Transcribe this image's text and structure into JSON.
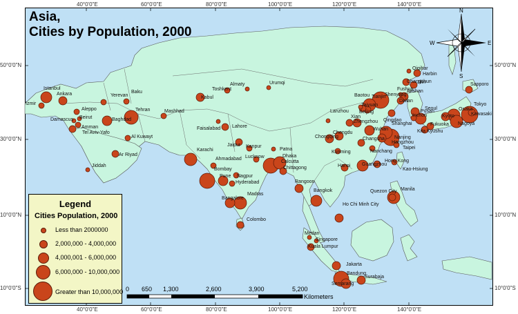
{
  "title": {
    "line1": "Asia,",
    "line2": "Cities by Population, 2000"
  },
  "graticule": {
    "top": [
      "40°0'0\"E",
      "60°0'0\"E",
      "80°0'0\"E",
      "100°0'0\"E",
      "120°0'0\"E",
      "140°0'0\"E"
    ],
    "bottom": [
      "40°0'0\"E",
      "60°0'0\"E",
      "80°0'0\"E",
      "100°0'0\"E",
      "120°0'0\"E",
      "140°0'0\"E"
    ],
    "left": [
      "50°0'0\"N",
      "30°0'0\"N",
      "10°0'0\"N",
      "10°0'0\"S"
    ],
    "right": [
      "50°0'0\"N",
      "30°0'0\"N",
      "10°0'0\"N",
      "10°0'0\"S"
    ]
  },
  "compass": {
    "n": "N",
    "s": "S",
    "e": "E",
    "w": "W"
  },
  "legend": {
    "title": "Legend",
    "subtitle": "Cities Population, 2000",
    "items": [
      {
        "label": "Less than 2000000"
      },
      {
        "label": "2,000,000 - 4,000,000"
      },
      {
        "label": "4,000,001 - 6,000,000"
      },
      {
        "label": "6,000,000 - 10,000,000"
      },
      {
        "label": "Greater than 10,000,000"
      }
    ]
  },
  "scale_bar": {
    "ticks": [
      "0",
      "650",
      "1,300",
      "2,600",
      "3,900",
      "5,200"
    ],
    "unit": "Kilometers"
  },
  "colors": {
    "land": "#c8f5df",
    "sea": "#bfe0f5",
    "city": "#c9451b",
    "border": "#555555"
  },
  "cities": [
    {
      "name": "Istanbul"
    },
    {
      "name": "Ankara"
    },
    {
      "name": "Izmir"
    },
    {
      "name": "Yerevan"
    },
    {
      "name": "Baku"
    },
    {
      "name": "Aleppo"
    },
    {
      "name": "Damascus"
    },
    {
      "name": "Beirut"
    },
    {
      "name": "Amman"
    },
    {
      "name": "Tel Aviv-Yafo"
    },
    {
      "name": "Baghdad"
    },
    {
      "name": "Tehran"
    },
    {
      "name": "Mashhad"
    },
    {
      "name": "Al Kuwayt"
    },
    {
      "name": "Ar Riyad"
    },
    {
      "name": "Jiddah"
    },
    {
      "name": "Kabul"
    },
    {
      "name": "Toshkent"
    },
    {
      "name": "Almaty"
    },
    {
      "name": "Faisalabad"
    },
    {
      "name": "Lahore"
    },
    {
      "name": "Karachi"
    },
    {
      "name": "Jaipur"
    },
    {
      "name": "Kanpur"
    },
    {
      "name": "Ahmadabad"
    },
    {
      "name": "Lucknow"
    },
    {
      "name": "Patna"
    },
    {
      "name": "Dhaka"
    },
    {
      "name": "Calcutta"
    },
    {
      "name": "Chittagong"
    },
    {
      "name": "Bombay"
    },
    {
      "name": "Pune"
    },
    {
      "name": "Nagpur"
    },
    {
      "name": "Hyderabad"
    },
    {
      "name": "Bangalore"
    },
    {
      "name": "Madras"
    },
    {
      "name": "Colombo"
    },
    {
      "name": "Urumqi"
    },
    {
      "name": "Lanzhou"
    },
    {
      "name": "Baotou"
    },
    {
      "name": "Xian"
    },
    {
      "name": "Chengdu"
    },
    {
      "name": "Chongqing"
    },
    {
      "name": "Kunming"
    },
    {
      "name": "Hanoi"
    },
    {
      "name": "Rangoon"
    },
    {
      "name": "Bangkok"
    },
    {
      "name": "Ho Chi Minh City"
    },
    {
      "name": "Kuala Lumpur"
    },
    {
      "name": "Singapore"
    },
    {
      "name": "Medan"
    },
    {
      "name": "Jakarta"
    },
    {
      "name": "Bandung"
    },
    {
      "name": "Semarang"
    },
    {
      "name": "Surabaja"
    },
    {
      "name": "Manila"
    },
    {
      "name": "Quezon City"
    },
    {
      "name": "Kao-Hsiung"
    },
    {
      "name": "Taipei"
    },
    {
      "name": "Hong Kong"
    },
    {
      "name": "Guangzhou"
    },
    {
      "name": "Nanchang"
    },
    {
      "name": "Hangzhou"
    },
    {
      "name": "Nanjing"
    },
    {
      "name": "Shanghai"
    },
    {
      "name": "Wuhan"
    },
    {
      "name": "Changsha"
    },
    {
      "name": "Zhengzhou"
    },
    {
      "name": "Qingdao"
    },
    {
      "name": "Tianjin"
    },
    {
      "name": "Taiyuan"
    },
    {
      "name": "Beijing"
    },
    {
      "name": "Shenyang"
    },
    {
      "name": "Fushun"
    },
    {
      "name": "Anshan"
    },
    {
      "name": "Dalian"
    },
    {
      "name": "Changchun"
    },
    {
      "name": "Jilin"
    },
    {
      "name": "Harbin"
    },
    {
      "name": "Qiqihar"
    },
    {
      "name": "Seoul"
    },
    {
      "name": "Inchon"
    },
    {
      "name": "Pusan"
    },
    {
      "name": "Kita Kyushu"
    },
    {
      "name": "Fukuoka"
    },
    {
      "name": "Kyoto"
    },
    {
      "name": "Osaka"
    },
    {
      "name": "Nagoya"
    },
    {
      "name": "Tokyo"
    },
    {
      "name": "Kawasaki"
    },
    {
      "name": "Sapporo"
    }
  ]
}
